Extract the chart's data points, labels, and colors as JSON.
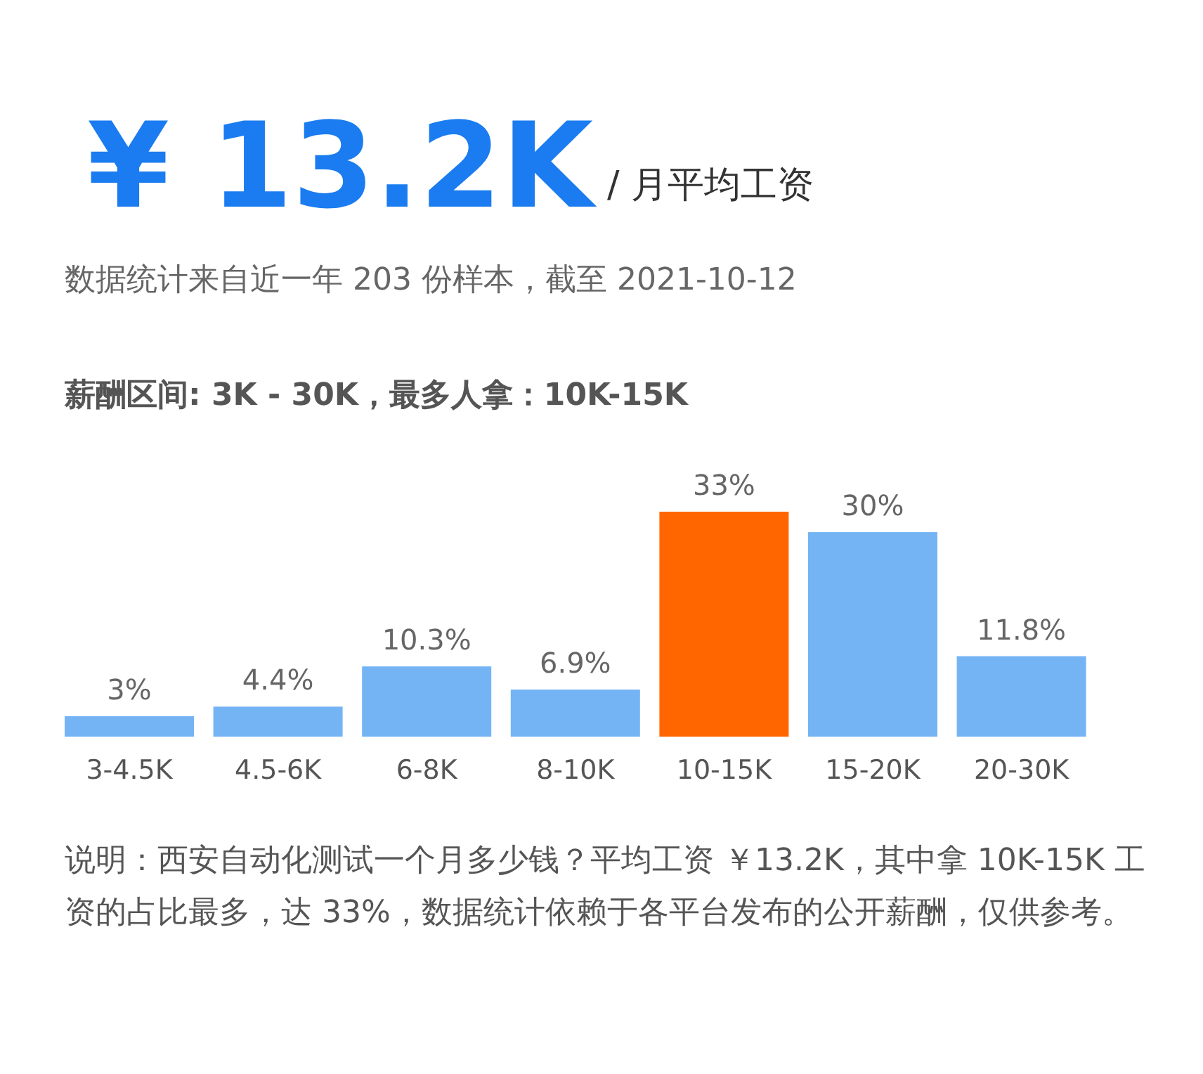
{
  "chart_data": {
    "type": "bar",
    "title": "¥ 13.2K",
    "subtitle": "/ 月平均工资",
    "annotations": [
      "数据统计来自近一年 203 份样本，截至 2021-10-12",
      "薪酬区间: 3K - 30K，最多人拿：10K-15K",
      "说明：西安自动化测试一个月多少钱？平均工资 ￥13.2K，其中拿 10K-15K 工资的占比最多，达 33%，数据统计依赖于各平台发布的公开薪酬，仅供参考。"
    ],
    "categories": [
      "3-4.5K",
      "4.5-6K",
      "6-8K",
      "8-10K",
      "10-15K",
      "15-20K",
      "20-30K"
    ],
    "values": [
      3,
      4.4,
      10.3,
      6.9,
      33,
      30,
      11.8
    ],
    "value_labels": [
      "3%",
      "4.4%",
      "10.3%",
      "6.9%",
      "33%",
      "30%",
      "11.8%"
    ],
    "colors": [
      "#74b4f5",
      "#74b4f5",
      "#74b4f5",
      "#74b4f5",
      "#ff6600",
      "#74b4f5",
      "#74b4f5"
    ]
  }
}
